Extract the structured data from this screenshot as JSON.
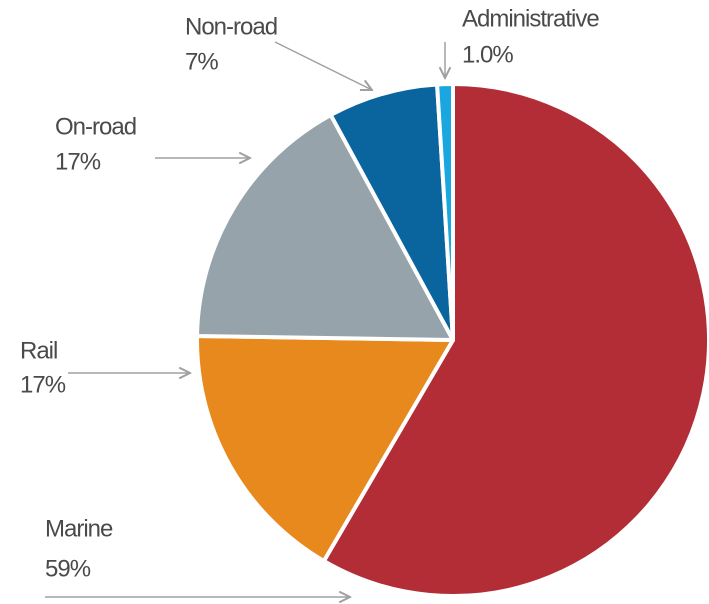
{
  "chart_data": {
    "type": "pie",
    "categories": [
      "Marine",
      "Rail",
      "On-road",
      "Non-road",
      "Administrative"
    ],
    "values": [
      59,
      17,
      17,
      7,
      1.0
    ],
    "value_labels": [
      "59%",
      "17%",
      "17%",
      "7%",
      "1.0%"
    ],
    "colors": [
      "#b22d35",
      "#e8891e",
      "#96a3ab",
      "#0a649e",
      "#1aa7e0"
    ]
  }
}
